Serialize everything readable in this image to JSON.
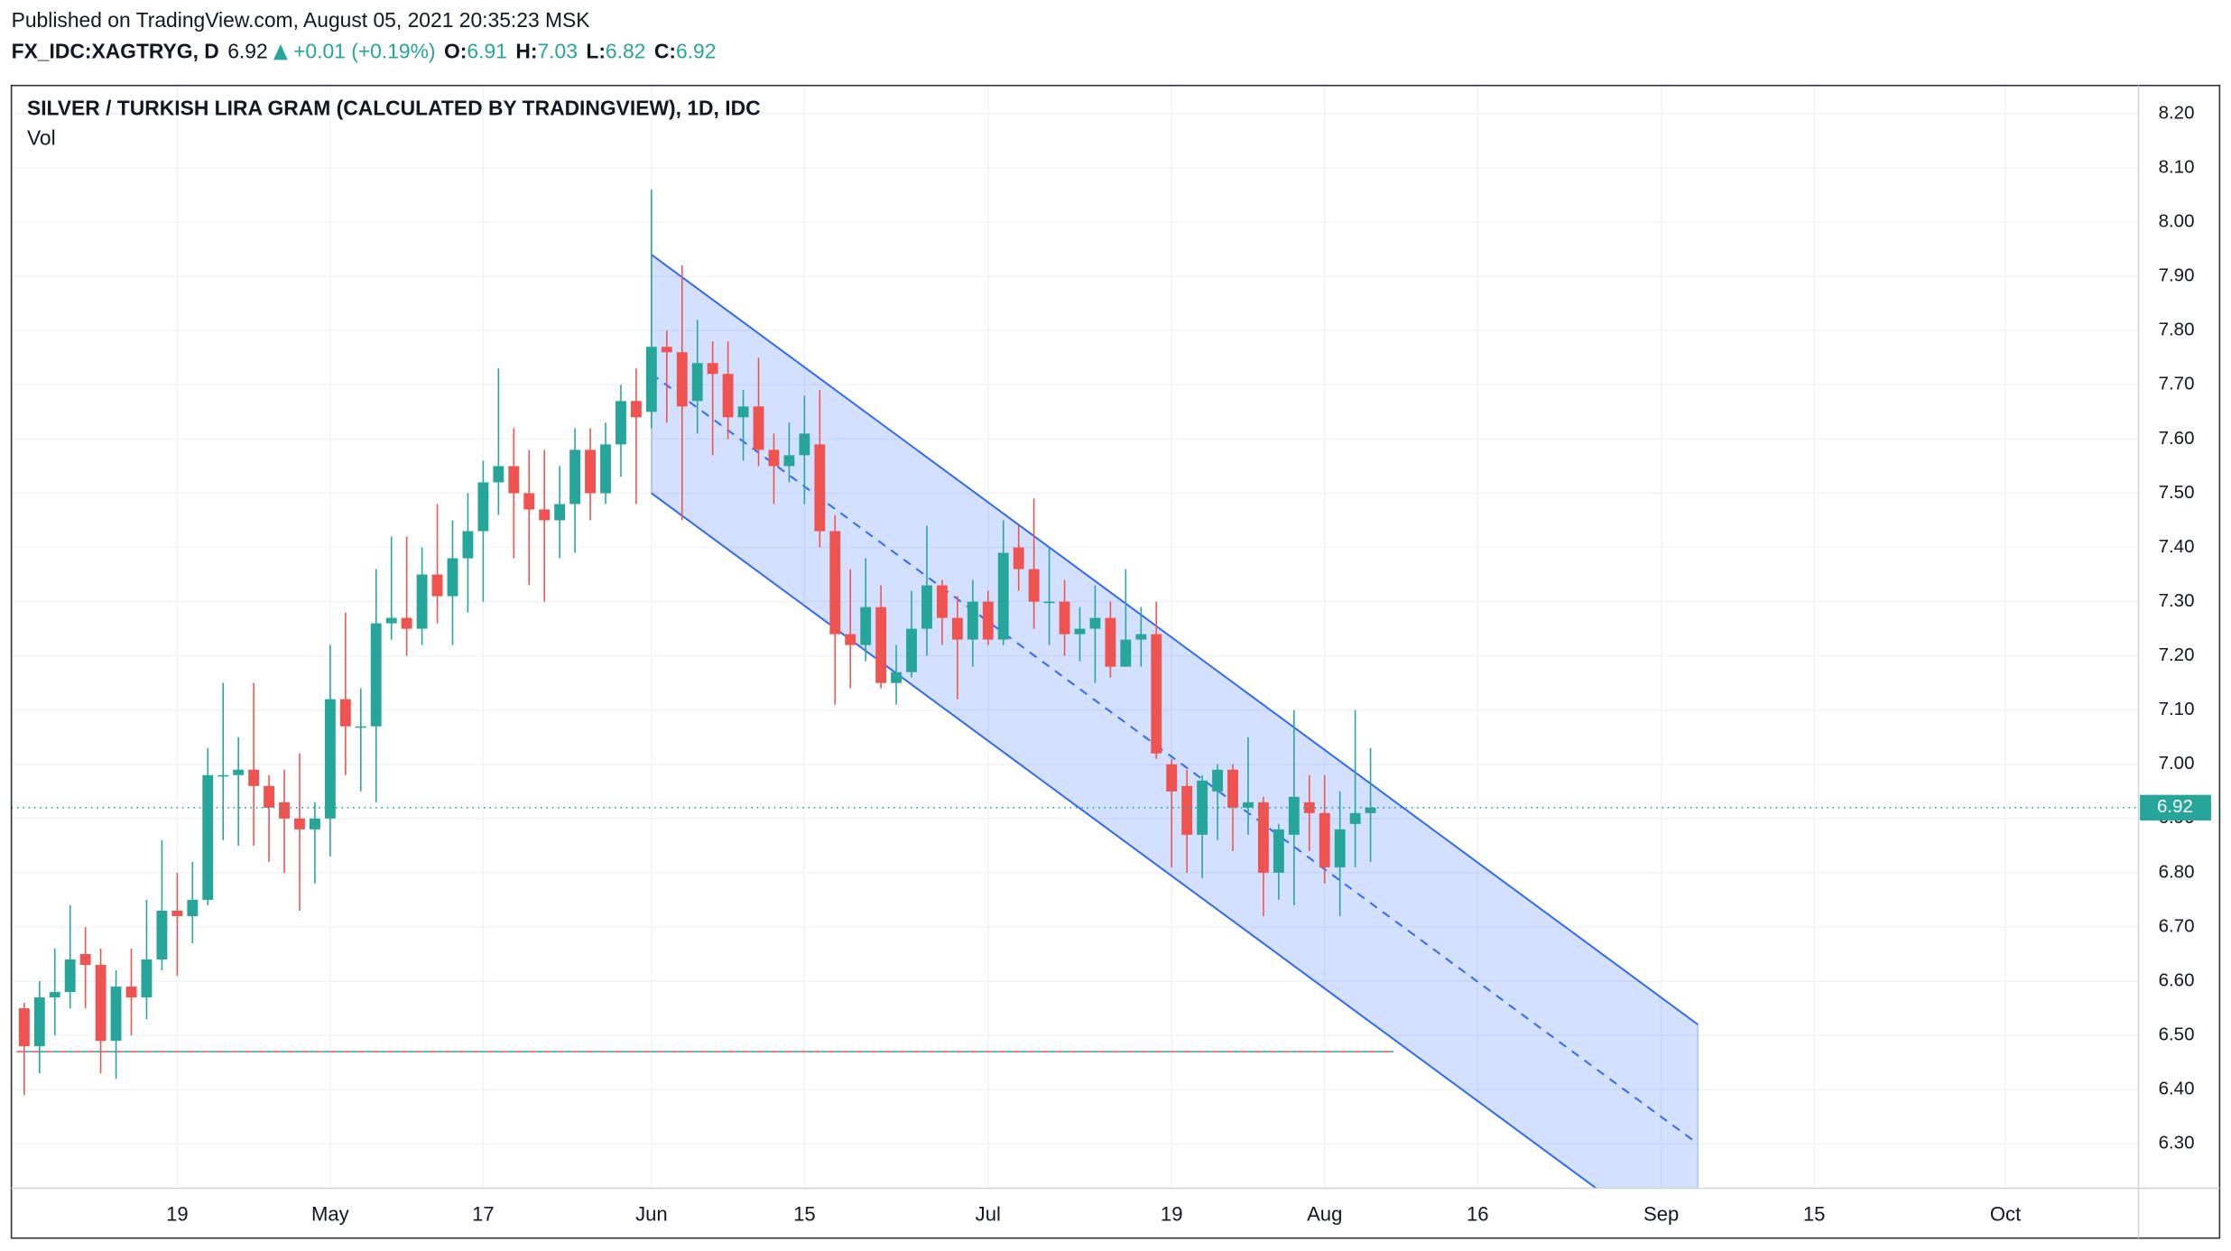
{
  "header": {
    "published": "Published on TradingView.com, August 05, 2021 20:35:23 MSK",
    "symbol": "FX_IDC:XAGTRYG, D",
    "price": 6.92,
    "change": "+0.01 (+0.19%)",
    "ohlc": [
      {
        "label": "O:",
        "value": 6.91
      },
      {
        "label": "H:",
        "value": 7.03
      },
      {
        "label": "L:",
        "value": 6.82
      },
      {
        "label": "C:",
        "value": 6.92
      }
    ]
  },
  "chart_data": {
    "type": "candlestick",
    "title": "SILVER / TURKISH LIRA GRAM (CALCULATED BY TRADINGVIEW), 1D, IDC",
    "subtitle": "Vol",
    "up_color": "#26a69a",
    "down_color": "#ef5350",
    "open": [
      6.55,
      6.48,
      6.57,
      6.58,
      6.65,
      6.63,
      6.49,
      6.59,
      6.57,
      6.64,
      6.73,
      6.72,
      6.75,
      6.98,
      6.98,
      6.99,
      6.96,
      6.93,
      6.9,
      6.88,
      6.9,
      7.12,
      7.07,
      7.07,
      7.26,
      7.27,
      7.25,
      7.35,
      7.31,
      7.38,
      7.43,
      7.52,
      7.55,
      7.5,
      7.47,
      7.45,
      7.48,
      7.58,
      7.5,
      7.59,
      7.67,
      7.65,
      7.77,
      7.76,
      7.67,
      7.74,
      7.72,
      7.64,
      7.66,
      7.58,
      7.55,
      7.57,
      7.59,
      7.43,
      7.24,
      7.22,
      7.29,
      7.15,
      7.17,
      7.25,
      7.33,
      7.27,
      7.23,
      7.3,
      7.23,
      7.4,
      7.36,
      7.3,
      7.3,
      7.24,
      7.25,
      7.27,
      7.18,
      7.23,
      7.24,
      7.0,
      6.96,
      6.87,
      6.95,
      6.99,
      6.92,
      6.93,
      6.8,
      6.87,
      6.93,
      6.91,
      6.81,
      6.89,
      6.91
    ],
    "high": [
      6.56,
      6.6,
      6.66,
      6.74,
      6.7,
      6.66,
      6.62,
      6.66,
      6.75,
      6.86,
      6.8,
      6.82,
      7.03,
      7.15,
      7.05,
      7.15,
      6.98,
      6.99,
      7.02,
      6.93,
      7.22,
      7.28,
      7.14,
      7.36,
      7.42,
      7.42,
      7.4,
      7.48,
      7.45,
      7.5,
      7.56,
      7.73,
      7.62,
      7.58,
      7.58,
      7.55,
      7.62,
      7.62,
      7.63,
      7.7,
      7.73,
      8.06,
      7.8,
      7.92,
      7.82,
      7.78,
      7.78,
      7.69,
      7.75,
      7.61,
      7.63,
      7.68,
      7.69,
      7.46,
      7.36,
      7.38,
      7.33,
      7.22,
      7.32,
      7.44,
      7.34,
      7.31,
      7.34,
      7.32,
      7.45,
      7.44,
      7.49,
      7.4,
      7.34,
      7.29,
      7.33,
      7.3,
      7.36,
      7.29,
      7.3,
      7.01,
      6.99,
      6.98,
      7.0,
      7.0,
      7.05,
      6.94,
      6.89,
      7.1,
      6.98,
      6.98,
      6.95,
      7.1,
      7.03
    ],
    "low": [
      6.39,
      6.43,
      6.5,
      6.55,
      6.55,
      6.43,
      6.42,
      6.5,
      6.53,
      6.62,
      6.61,
      6.67,
      6.74,
      6.86,
      6.85,
      6.85,
      6.82,
      6.8,
      6.73,
      6.78,
      6.83,
      6.98,
      6.95,
      6.93,
      7.23,
      7.2,
      7.22,
      7.26,
      7.22,
      7.28,
      7.3,
      7.46,
      7.38,
      7.33,
      7.3,
      7.38,
      7.39,
      7.45,
      7.48,
      7.53,
      7.48,
      7.62,
      7.63,
      7.45,
      7.61,
      7.57,
      7.6,
      7.56,
      7.55,
      7.48,
      7.52,
      7.48,
      7.4,
      7.11,
      7.14,
      7.19,
      7.14,
      7.11,
      7.16,
      7.2,
      7.22,
      7.12,
      7.18,
      7.22,
      7.22,
      7.32,
      7.25,
      7.22,
      7.2,
      7.19,
      7.15,
      7.16,
      7.18,
      7.18,
      7.01,
      6.81,
      6.8,
      6.79,
      6.86,
      6.84,
      6.87,
      6.72,
      6.75,
      6.74,
      6.84,
      6.78,
      6.72,
      6.81,
      6.82
    ],
    "close": [
      6.48,
      6.57,
      6.58,
      6.64,
      6.63,
      6.49,
      6.59,
      6.57,
      6.64,
      6.73,
      6.72,
      6.75,
      6.98,
      6.98,
      6.99,
      6.96,
      6.92,
      6.9,
      6.88,
      6.9,
      7.12,
      7.07,
      7.07,
      7.26,
      7.27,
      7.25,
      7.35,
      7.31,
      7.38,
      7.43,
      7.52,
      7.55,
      7.5,
      7.47,
      7.45,
      7.48,
      7.58,
      7.5,
      7.59,
      7.67,
      7.64,
      7.77,
      7.76,
      7.66,
      7.74,
      7.72,
      7.64,
      7.66,
      7.58,
      7.55,
      7.57,
      7.61,
      7.43,
      7.24,
      7.22,
      7.29,
      7.15,
      7.17,
      7.25,
      7.33,
      7.27,
      7.23,
      7.3,
      7.23,
      7.39,
      7.36,
      7.3,
      7.3,
      7.24,
      7.25,
      7.27,
      7.18,
      7.23,
      7.24,
      7.02,
      6.95,
      6.87,
      6.97,
      6.99,
      6.92,
      6.93,
      6.8,
      6.88,
      6.94,
      6.91,
      6.81,
      6.88,
      6.91,
      6.92
    ],
    "xlim": [
      -0.84,
      138.2
    ],
    "xticks": [
      {
        "value": 10,
        "label": "19"
      },
      {
        "value": 20,
        "label": "May"
      },
      {
        "value": 30,
        "label": "17"
      },
      {
        "value": 41,
        "label": "Jun"
      },
      {
        "value": 51,
        "label": "15"
      },
      {
        "value": 63,
        "label": "Jul"
      },
      {
        "value": 75,
        "label": "19"
      },
      {
        "value": 85,
        "label": "Aug"
      },
      {
        "value": 95,
        "label": "16"
      },
      {
        "value": 107,
        "label": "Sep"
      },
      {
        "value": 117,
        "label": "15"
      },
      {
        "value": 129.5,
        "label": "Oct"
      }
    ],
    "ylim": [
      6.218,
      8.252
    ],
    "yticks": [
      {
        "value": 6.3,
        "label": "6.30"
      },
      {
        "value": 6.4,
        "label": "6.40"
      },
      {
        "value": 6.5,
        "label": "6.50"
      },
      {
        "value": 6.6,
        "label": "6.60"
      },
      {
        "value": 6.7,
        "label": "6.70"
      },
      {
        "value": 6.8,
        "label": "6.80"
      },
      {
        "value": 6.9,
        "label": "6.90"
      },
      {
        "value": 7.0,
        "label": "7.00"
      },
      {
        "value": 7.1,
        "label": "7.10"
      },
      {
        "value": 7.2,
        "label": "7.20"
      },
      {
        "value": 7.3,
        "label": "7.30"
      },
      {
        "value": 7.4,
        "label": "7.40"
      },
      {
        "value": 7.5,
        "label": "7.50"
      },
      {
        "value": 7.6,
        "label": "7.60"
      },
      {
        "value": 7.7,
        "label": "7.70"
      },
      {
        "value": 7.8,
        "label": "7.80"
      },
      {
        "value": 7.9,
        "label": "7.90"
      },
      {
        "value": 8.0,
        "label": "8.00"
      },
      {
        "value": 8.1,
        "label": "8.10"
      },
      {
        "value": 8.2,
        "label": "8.20"
      }
    ],
    "grid": true,
    "last_price": 6.92,
    "channel": {
      "x": [
        41,
        109.4
      ],
      "upper": [
        7.94,
        6.52
      ],
      "middle": [
        7.72,
        6.3
      ],
      "lower": [
        7.5,
        6.08
      ],
      "color": "#2962ff"
    },
    "reference_line": {
      "value": 6.47,
      "x": [
        -0.5,
        89.5
      ]
    }
  }
}
